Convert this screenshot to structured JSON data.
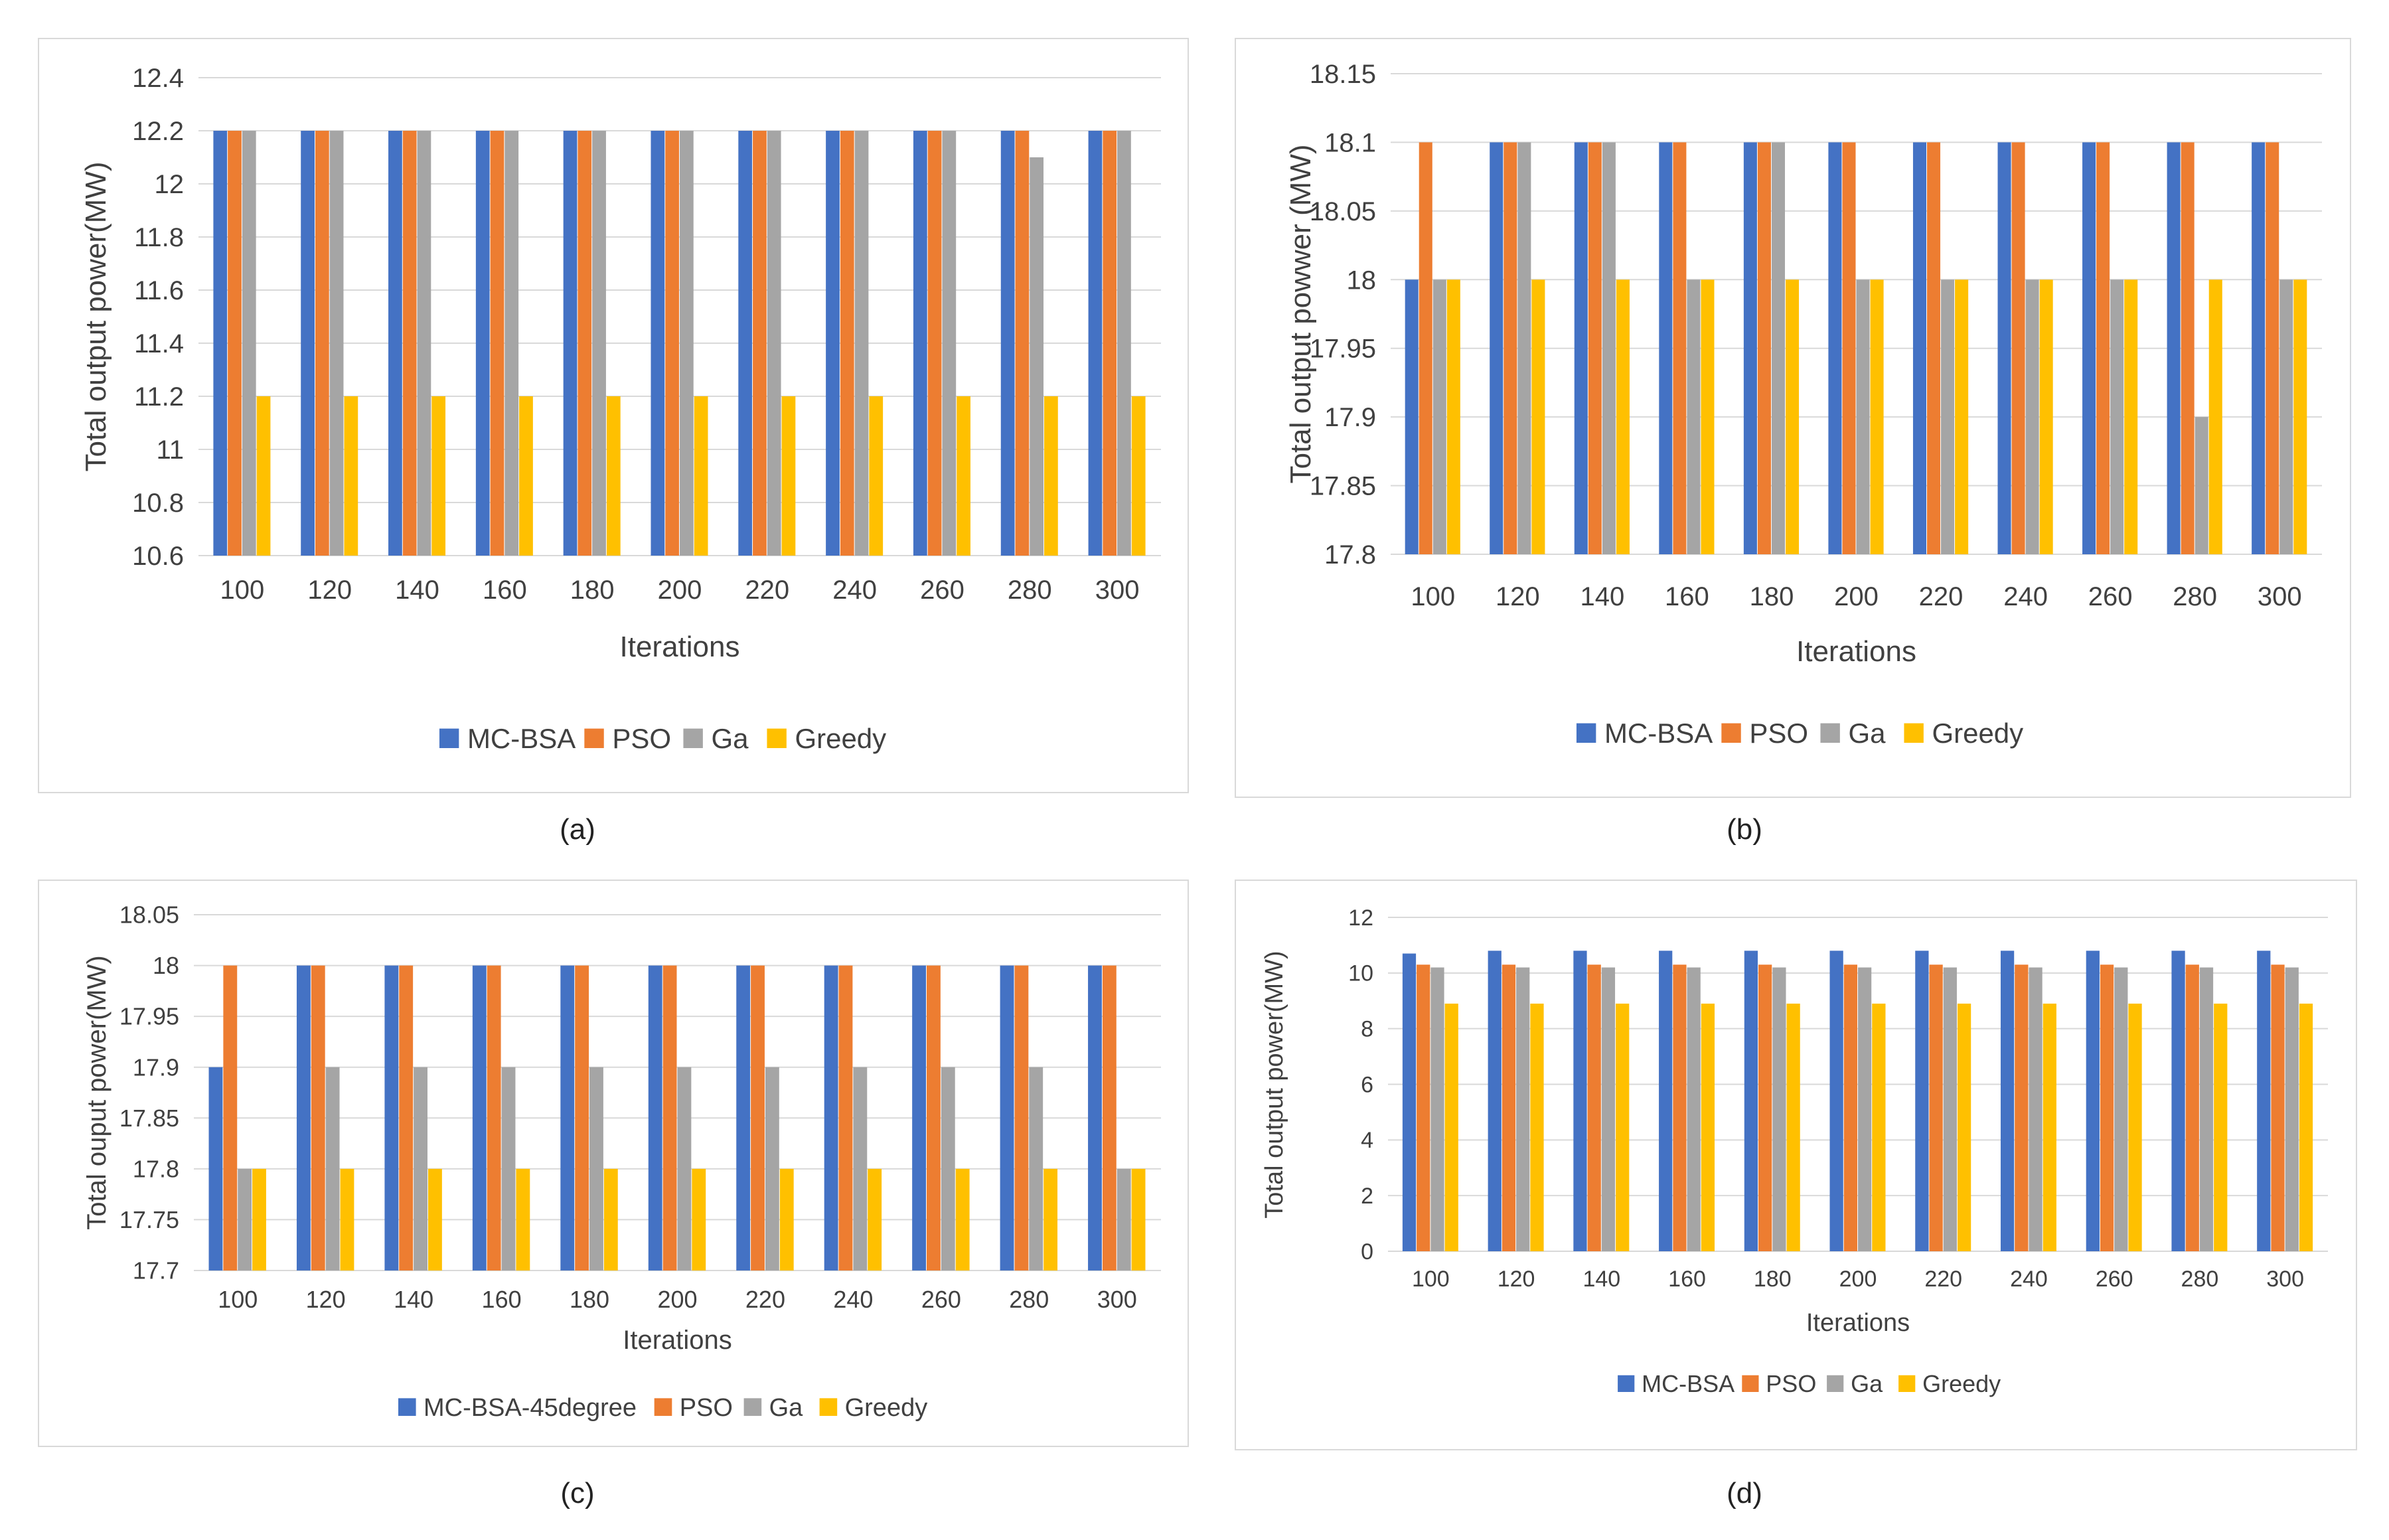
{
  "figure": {
    "captions": [
      "(a)",
      "(b)",
      "(c)",
      "(d)"
    ]
  },
  "chart_data": [
    {
      "type": "bar",
      "panel": "a",
      "title": "",
      "xlabel": "Iterations",
      "ylabel": "Total output power(MW)",
      "ylim": [
        10.6,
        12.4
      ],
      "yticks": [
        "10.6",
        "10.8",
        "11",
        "11.2",
        "11.4",
        "11.6",
        "11.8",
        "12",
        "12.2",
        "12.4"
      ],
      "grid": true,
      "legend_position": "bottom",
      "categories": [
        "100",
        "120",
        "140",
        "160",
        "180",
        "200",
        "220",
        "240",
        "260",
        "280",
        "300"
      ],
      "series": [
        {
          "name": "MC-BSA",
          "color": "#4472C4",
          "values": [
            12.2,
            12.2,
            12.2,
            12.2,
            12.2,
            12.2,
            12.2,
            12.2,
            12.2,
            12.2,
            12.2
          ]
        },
        {
          "name": "PSO",
          "color": "#ED7D31",
          "values": [
            12.2,
            12.2,
            12.2,
            12.2,
            12.2,
            12.2,
            12.2,
            12.2,
            12.2,
            12.2,
            12.2
          ]
        },
        {
          "name": "Ga",
          "color": "#A5A5A5",
          "values": [
            12.2,
            12.2,
            12.2,
            12.2,
            12.2,
            12.2,
            12.2,
            12.2,
            12.2,
            12.1,
            12.2
          ]
        },
        {
          "name": "Greedy",
          "color": "#FFC000",
          "values": [
            11.2,
            11.2,
            11.2,
            11.2,
            11.2,
            11.2,
            11.2,
            11.2,
            11.2,
            11.2,
            11.2
          ]
        }
      ]
    },
    {
      "type": "bar",
      "panel": "b",
      "title": "",
      "xlabel": "Iterations",
      "ylabel": "Total output powwer (MW)",
      "ylim": [
        17.8,
        18.15
      ],
      "yticks": [
        "17.8",
        "17.85",
        "17.9",
        "17.95",
        "18",
        "18.05",
        "18.1",
        "18.15"
      ],
      "grid": true,
      "legend_position": "bottom",
      "categories": [
        "100",
        "120",
        "140",
        "160",
        "180",
        "200",
        "220",
        "240",
        "260",
        "280",
        "300"
      ],
      "series": [
        {
          "name": "MC-BSA",
          "color": "#4472C4",
          "values": [
            18.0,
            18.1,
            18.1,
            18.1,
            18.1,
            18.1,
            18.1,
            18.1,
            18.1,
            18.1,
            18.1
          ]
        },
        {
          "name": "PSO",
          "color": "#ED7D31",
          "values": [
            18.1,
            18.1,
            18.1,
            18.1,
            18.1,
            18.1,
            18.1,
            18.1,
            18.1,
            18.1,
            18.1
          ]
        },
        {
          "name": "Ga",
          "color": "#A5A5A5",
          "values": [
            18.0,
            18.1,
            18.1,
            18.0,
            18.1,
            18.0,
            18.0,
            18.0,
            18.0,
            17.9,
            18.0
          ]
        },
        {
          "name": "Greedy",
          "color": "#FFC000",
          "values": [
            18.0,
            18.0,
            18.0,
            18.0,
            18.0,
            18.0,
            18.0,
            18.0,
            18.0,
            18.0,
            18.0
          ]
        }
      ]
    },
    {
      "type": "bar",
      "panel": "c",
      "title": "",
      "xlabel": "Iterations",
      "ylabel": "Total ouput power(MW)",
      "ylim": [
        17.7,
        18.05
      ],
      "yticks": [
        "17.7",
        "17.75",
        "17.8",
        "17.85",
        "17.9",
        "17.95",
        "18",
        "18.05"
      ],
      "grid": true,
      "legend_position": "bottom",
      "categories": [
        "100",
        "120",
        "140",
        "160",
        "180",
        "200",
        "220",
        "240",
        "260",
        "280",
        "300"
      ],
      "series": [
        {
          "name": "MC-BSA-45degree",
          "color": "#4472C4",
          "values": [
            17.9,
            18.0,
            18.0,
            18.0,
            18.0,
            18.0,
            18.0,
            18.0,
            18.0,
            18.0,
            18.0
          ]
        },
        {
          "name": "PSO",
          "color": "#ED7D31",
          "values": [
            18.0,
            18.0,
            18.0,
            18.0,
            18.0,
            18.0,
            18.0,
            18.0,
            18.0,
            18.0,
            18.0
          ]
        },
        {
          "name": "Ga",
          "color": "#A5A5A5",
          "values": [
            17.8,
            17.9,
            17.9,
            17.9,
            17.9,
            17.9,
            17.9,
            17.9,
            17.9,
            17.9,
            17.8
          ]
        },
        {
          "name": "Greedy",
          "color": "#FFC000",
          "values": [
            17.8,
            17.8,
            17.8,
            17.8,
            17.8,
            17.8,
            17.8,
            17.8,
            17.8,
            17.8,
            17.8
          ]
        }
      ]
    },
    {
      "type": "bar",
      "panel": "d",
      "title": "",
      "xlabel": "Iterations",
      "ylabel": "Total output power(MW)",
      "ylim": [
        0,
        12
      ],
      "yticks": [
        "0",
        "2",
        "4",
        "6",
        "8",
        "10",
        "12"
      ],
      "grid": true,
      "legend_position": "bottom",
      "categories": [
        "100",
        "120",
        "140",
        "160",
        "180",
        "200",
        "220",
        "240",
        "260",
        "280",
        "300"
      ],
      "series": [
        {
          "name": "MC-BSA",
          "color": "#4472C4",
          "values": [
            10.7,
            10.8,
            10.8,
            10.8,
            10.8,
            10.8,
            10.8,
            10.8,
            10.8,
            10.8,
            10.8
          ]
        },
        {
          "name": "PSO",
          "color": "#ED7D31",
          "values": [
            10.3,
            10.3,
            10.3,
            10.3,
            10.3,
            10.3,
            10.3,
            10.3,
            10.3,
            10.3,
            10.3
          ]
        },
        {
          "name": "Ga",
          "color": "#A5A5A5",
          "values": [
            10.2,
            10.2,
            10.2,
            10.2,
            10.2,
            10.2,
            10.2,
            10.2,
            10.2,
            10.2,
            10.2
          ]
        },
        {
          "name": "Greedy",
          "color": "#FFC000",
          "values": [
            8.9,
            8.9,
            8.9,
            8.9,
            8.9,
            8.9,
            8.9,
            8.9,
            8.9,
            8.9,
            8.9
          ]
        }
      ]
    }
  ]
}
